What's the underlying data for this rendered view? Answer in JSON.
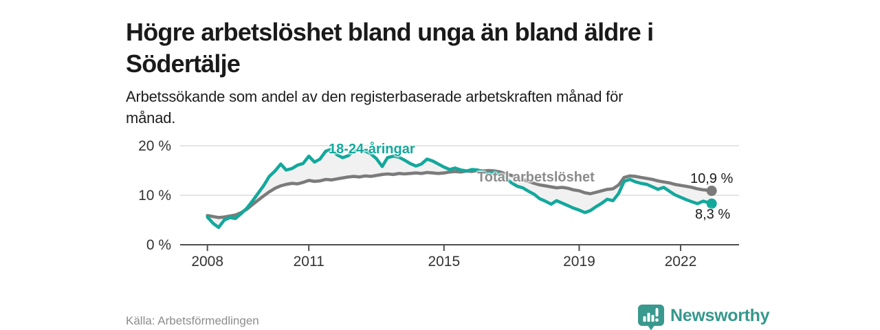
{
  "header": {
    "title_line1": "Högre arbetslöshet bland unga än bland äldre i",
    "title_line2": "Södertälje",
    "subtitle_line1": "Arbetssökande som andel av den registerbaserade arbetskraften månad för",
    "subtitle_line2": "månad."
  },
  "footer": {
    "source": "Källa: Arbetsförmedlingen",
    "brand": "Newsworthy",
    "brand_icon": "bar-chart-bubble-icon",
    "brand_color": "#35988c"
  },
  "chart_data": {
    "type": "line",
    "title": "Högre arbetslöshet bland unga än bland äldre i Södertälje",
    "subtitle": "Arbetssökande som andel av den registerbaserade arbetskraften månad för månad.",
    "unit": "%",
    "grid": "horizontal",
    "legend_position": "inline-labels",
    "xlim": [
      2007.85,
      2023.1
    ],
    "ylim": [
      0,
      21
    ],
    "x_ticks": [
      2008,
      2011,
      2015,
      2019,
      2022
    ],
    "y_ticks": [
      {
        "value": 0,
        "label": "0 %"
      },
      {
        "value": 10,
        "label": "10 %"
      },
      {
        "value": 20,
        "label": "20 %"
      }
    ],
    "fill_between_color": "#f1f1f1",
    "colors": {
      "young": "#13a89c",
      "total": "#7b7b7b",
      "grid": "#dcdcdc",
      "axis": "#4d4d4d",
      "tick_text": "#333333"
    },
    "series": [
      {
        "name": "Total arbetslöshet",
        "color": "#7b7b7b",
        "end_value": 10.9,
        "end_label": "10,9 %",
        "points": [
          [
            2008.0,
            5.9
          ],
          [
            2008.17,
            5.7
          ],
          [
            2008.33,
            5.5
          ],
          [
            2008.5,
            5.6
          ],
          [
            2008.67,
            5.8
          ],
          [
            2008.83,
            6.0
          ],
          [
            2009.0,
            6.5
          ],
          [
            2009.17,
            7.2
          ],
          [
            2009.33,
            8.1
          ],
          [
            2009.5,
            9.0
          ],
          [
            2009.67,
            9.9
          ],
          [
            2009.83,
            10.7
          ],
          [
            2010.0,
            11.4
          ],
          [
            2010.17,
            11.9
          ],
          [
            2010.33,
            12.2
          ],
          [
            2010.5,
            12.4
          ],
          [
            2010.67,
            12.3
          ],
          [
            2010.83,
            12.6
          ],
          [
            2011.0,
            13.0
          ],
          [
            2011.17,
            12.8
          ],
          [
            2011.33,
            12.9
          ],
          [
            2011.5,
            13.2
          ],
          [
            2011.67,
            13.1
          ],
          [
            2011.83,
            13.3
          ],
          [
            2012.0,
            13.5
          ],
          [
            2012.17,
            13.7
          ],
          [
            2012.33,
            13.8
          ],
          [
            2012.5,
            13.7
          ],
          [
            2012.67,
            13.9
          ],
          [
            2012.83,
            13.8
          ],
          [
            2013.0,
            14.0
          ],
          [
            2013.17,
            14.2
          ],
          [
            2013.33,
            14.3
          ],
          [
            2013.5,
            14.2
          ],
          [
            2013.67,
            14.4
          ],
          [
            2013.83,
            14.3
          ],
          [
            2014.0,
            14.4
          ],
          [
            2014.17,
            14.5
          ],
          [
            2014.33,
            14.4
          ],
          [
            2014.5,
            14.6
          ],
          [
            2014.67,
            14.5
          ],
          [
            2014.83,
            14.4
          ],
          [
            2015.0,
            14.5
          ],
          [
            2015.17,
            14.7
          ],
          [
            2015.33,
            14.8
          ],
          [
            2015.5,
            14.7
          ],
          [
            2015.67,
            14.9
          ],
          [
            2015.83,
            14.8
          ],
          [
            2016.0,
            15.0
          ],
          [
            2016.17,
            14.9
          ],
          [
            2016.33,
            15.0
          ],
          [
            2016.5,
            14.9
          ],
          [
            2016.67,
            14.7
          ],
          [
            2016.83,
            14.3
          ],
          [
            2017.0,
            14.0
          ],
          [
            2017.17,
            13.6
          ],
          [
            2017.33,
            13.2
          ],
          [
            2017.5,
            12.8
          ],
          [
            2017.67,
            12.4
          ],
          [
            2017.83,
            12.1
          ],
          [
            2018.0,
            11.9
          ],
          [
            2018.17,
            11.7
          ],
          [
            2018.33,
            11.5
          ],
          [
            2018.5,
            11.6
          ],
          [
            2018.67,
            11.4
          ],
          [
            2018.83,
            11.1
          ],
          [
            2019.0,
            10.9
          ],
          [
            2019.17,
            10.5
          ],
          [
            2019.33,
            10.3
          ],
          [
            2019.5,
            10.6
          ],
          [
            2019.67,
            10.9
          ],
          [
            2019.83,
            11.2
          ],
          [
            2020.0,
            11.3
          ],
          [
            2020.17,
            12.1
          ],
          [
            2020.33,
            13.6
          ],
          [
            2020.5,
            13.9
          ],
          [
            2020.67,
            13.8
          ],
          [
            2020.83,
            13.6
          ],
          [
            2021.0,
            13.4
          ],
          [
            2021.17,
            13.2
          ],
          [
            2021.33,
            12.9
          ],
          [
            2021.5,
            12.7
          ],
          [
            2021.67,
            12.5
          ],
          [
            2021.83,
            12.2
          ],
          [
            2022.0,
            12.0
          ],
          [
            2022.17,
            11.8
          ],
          [
            2022.33,
            11.6
          ],
          [
            2022.5,
            11.3
          ],
          [
            2022.67,
            11.1
          ],
          [
            2022.83,
            11.0
          ],
          [
            2022.92,
            10.9
          ]
        ]
      },
      {
        "name": "18-24-åringar",
        "color": "#13a89c",
        "end_value": 8.3,
        "end_label": "8,3 %",
        "points": [
          [
            2008.0,
            5.6
          ],
          [
            2008.17,
            4.3
          ],
          [
            2008.33,
            3.5
          ],
          [
            2008.5,
            5.0
          ],
          [
            2008.67,
            5.5
          ],
          [
            2008.83,
            5.3
          ],
          [
            2009.0,
            6.3
          ],
          [
            2009.17,
            7.4
          ],
          [
            2009.33,
            8.8
          ],
          [
            2009.5,
            10.4
          ],
          [
            2009.67,
            12.0
          ],
          [
            2009.83,
            13.8
          ],
          [
            2010.0,
            14.9
          ],
          [
            2010.17,
            16.3
          ],
          [
            2010.33,
            15.1
          ],
          [
            2010.5,
            15.4
          ],
          [
            2010.67,
            16.1
          ],
          [
            2010.83,
            16.4
          ],
          [
            2011.0,
            17.9
          ],
          [
            2011.17,
            16.7
          ],
          [
            2011.33,
            17.3
          ],
          [
            2011.5,
            18.9
          ],
          [
            2011.67,
            19.3
          ],
          [
            2011.83,
            18.2
          ],
          [
            2012.0,
            17.6
          ],
          [
            2012.17,
            18.0
          ],
          [
            2012.33,
            18.9
          ],
          [
            2012.5,
            19.2
          ],
          [
            2012.67,
            18.9
          ],
          [
            2012.83,
            18.4
          ],
          [
            2013.0,
            17.4
          ],
          [
            2013.17,
            15.8
          ],
          [
            2013.33,
            17.6
          ],
          [
            2013.5,
            17.9
          ],
          [
            2013.67,
            17.7
          ],
          [
            2013.83,
            17.1
          ],
          [
            2014.0,
            16.4
          ],
          [
            2014.17,
            15.9
          ],
          [
            2014.33,
            16.3
          ],
          [
            2014.5,
            17.3
          ],
          [
            2014.67,
            16.9
          ],
          [
            2014.83,
            16.3
          ],
          [
            2015.0,
            15.7
          ],
          [
            2015.17,
            15.2
          ],
          [
            2015.33,
            15.5
          ],
          [
            2015.5,
            15.1
          ],
          [
            2015.67,
            14.9
          ],
          [
            2015.83,
            15.2
          ],
          [
            2016.0,
            15.1
          ],
          [
            2016.17,
            14.7
          ],
          [
            2016.33,
            14.3
          ],
          [
            2016.5,
            14.7
          ],
          [
            2016.67,
            14.1
          ],
          [
            2016.83,
            13.4
          ],
          [
            2017.0,
            12.5
          ],
          [
            2017.17,
            11.8
          ],
          [
            2017.33,
            11.5
          ],
          [
            2017.5,
            10.8
          ],
          [
            2017.67,
            10.2
          ],
          [
            2017.83,
            9.3
          ],
          [
            2018.0,
            8.8
          ],
          [
            2018.17,
            8.2
          ],
          [
            2018.33,
            8.9
          ],
          [
            2018.5,
            8.4
          ],
          [
            2018.67,
            7.9
          ],
          [
            2018.83,
            7.4
          ],
          [
            2019.0,
            7.0
          ],
          [
            2019.17,
            6.5
          ],
          [
            2019.33,
            6.9
          ],
          [
            2019.5,
            7.7
          ],
          [
            2019.67,
            8.4
          ],
          [
            2019.83,
            9.2
          ],
          [
            2020.0,
            8.9
          ],
          [
            2020.17,
            10.4
          ],
          [
            2020.33,
            12.8
          ],
          [
            2020.5,
            13.2
          ],
          [
            2020.67,
            12.7
          ],
          [
            2020.83,
            12.4
          ],
          [
            2021.0,
            12.2
          ],
          [
            2021.17,
            11.7
          ],
          [
            2021.33,
            11.2
          ],
          [
            2021.5,
            11.6
          ],
          [
            2021.67,
            10.8
          ],
          [
            2021.83,
            10.1
          ],
          [
            2022.0,
            9.6
          ],
          [
            2022.17,
            9.1
          ],
          [
            2022.33,
            8.7
          ],
          [
            2022.5,
            8.3
          ],
          [
            2022.67,
            8.8
          ],
          [
            2022.83,
            8.5
          ],
          [
            2022.92,
            8.3
          ]
        ]
      }
    ]
  }
}
